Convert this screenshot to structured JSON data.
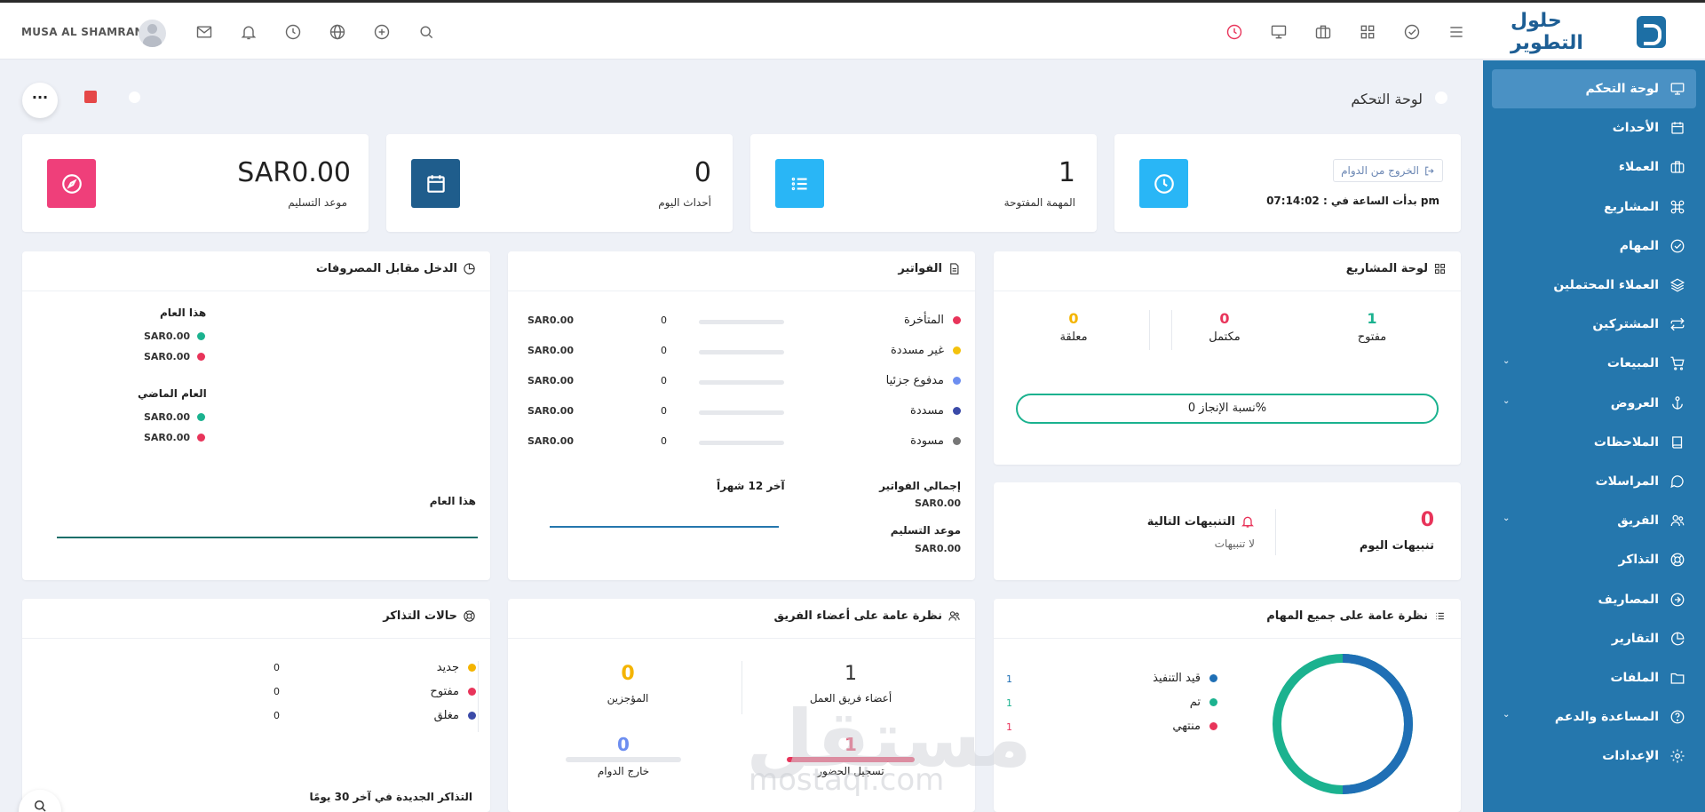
{
  "brand": {
    "name": "حلول التطوير"
  },
  "user": {
    "name": "MUSA AL SHAMRANI"
  },
  "page": {
    "title": "لوحة التحكم"
  },
  "sidebar": {
    "items": [
      {
        "label": "لوحة التحكم",
        "icon": "monitor-icon",
        "active": true
      },
      {
        "label": "الأحداث",
        "icon": "calendar-icon"
      },
      {
        "label": "العملاء",
        "icon": "briefcase-icon"
      },
      {
        "label": "المشاريع",
        "icon": "command-icon"
      },
      {
        "label": "المهام",
        "icon": "check-circle-icon"
      },
      {
        "label": "العملاء المحتملين",
        "icon": "layers-icon"
      },
      {
        "label": "المشتركين",
        "icon": "repeat-icon"
      },
      {
        "label": "المبيعات",
        "icon": "cart-icon",
        "chevron": true
      },
      {
        "label": "العروض",
        "icon": "anchor-icon",
        "chevron": true
      },
      {
        "label": "الملاحظات",
        "icon": "book-icon"
      },
      {
        "label": "المراسلات",
        "icon": "message-icon"
      },
      {
        "label": "الفريق",
        "icon": "users-icon",
        "chevron": true
      },
      {
        "label": "التذاكر",
        "icon": "lifebuoy-icon"
      },
      {
        "label": "المصاريف",
        "icon": "arrow-circle-icon"
      },
      {
        "label": "التقارير",
        "icon": "pie-icon"
      },
      {
        "label": "الملفات",
        "icon": "folder-icon"
      },
      {
        "label": "المساعدة والدعم",
        "icon": "help-icon",
        "chevron": true
      },
      {
        "label": "الإعدادات",
        "icon": "settings-icon"
      }
    ]
  },
  "stats": {
    "clock": {
      "button": "الخروج من الدوام",
      "started": "بدأت الساعة في : 07:14:02 pm"
    },
    "open_tasks": {
      "value": "1",
      "label": "المهمة المفتوحة"
    },
    "events_today": {
      "value": "0",
      "label": "أحداث اليوم"
    },
    "due": {
      "value": "SAR0.00",
      "label": "موعد التسليم"
    }
  },
  "projects": {
    "title": "لوحة المشاريع",
    "open": {
      "value": "1",
      "label": "مفتوح"
    },
    "completed": {
      "value": "0",
      "label": "مكتمل"
    },
    "hold": {
      "value": "0",
      "label": "معلقة"
    },
    "progress": "نسبة الإنجاز 0%"
  },
  "reminders": {
    "today_value": "0",
    "today_label": "تنبيهات اليوم",
    "next_title": "التنبيهات التالية",
    "none": "لا تنبيهات"
  },
  "invoices": {
    "title": "الفواتير",
    "rows": [
      {
        "label": "المتأخرة",
        "color": "#e8345a",
        "count": "0",
        "amount": "SAR0.00"
      },
      {
        "label": "غير مسددة",
        "color": "#f4c20d",
        "count": "0",
        "amount": "SAR0.00"
      },
      {
        "label": "مدفوع جزئيا",
        "color": "#6d8ef0",
        "count": "0",
        "amount": "SAR0.00"
      },
      {
        "label": "مسددة",
        "color": "#3b4aa8",
        "count": "0",
        "amount": "SAR0.00"
      },
      {
        "label": "مسودة",
        "color": "#777",
        "count": "0",
        "amount": "SAR0.00"
      }
    ],
    "total_label": "إجمالي الفواتير",
    "total_value": "SAR0.00",
    "due_label": "موعد التسليم",
    "due_value": "SAR0.00",
    "last12": "آخر 12 شهراً"
  },
  "income": {
    "title": "الدخل مقابل المصروفات",
    "this_year": "هذا العام",
    "last_year": "العام الماضي",
    "v1": "SAR0.00",
    "v2": "SAR0.00",
    "v3": "SAR0.00",
    "v4": "SAR0.00",
    "chart_label": "هذا العام"
  },
  "tasks_overview": {
    "title": "نظرة عامة على جميع المهام",
    "items": [
      {
        "label": "قيد التنفيذ",
        "color": "#1f6fb5",
        "value": "1"
      },
      {
        "label": "تم",
        "color": "#1bb28f",
        "value": "1"
      },
      {
        "label": "منتهي",
        "color": "#e8345a",
        "value": "1"
      }
    ]
  },
  "team": {
    "title": "نظرة عامة على أعضاء الفريق",
    "members": {
      "value": "1",
      "label": "أعضاء فريق العمل"
    },
    "on_leave": {
      "value": "0",
      "label": "المؤجزين"
    },
    "clocked_in": {
      "value": "1",
      "label": "تسجيل الحضور"
    },
    "clocked_out": {
      "value": "0",
      "label": "خارج الدوام"
    }
  },
  "tickets": {
    "title": "حالات التذاكر",
    "rows": [
      {
        "label": "جديد",
        "color": "#f4b400",
        "value": "0"
      },
      {
        "label": "مفتوح",
        "color": "#e8345a",
        "value": "0"
      },
      {
        "label": "مغلق",
        "color": "#3b4aa8",
        "value": "0"
      }
    ],
    "new30": "التذاكر الجديدة في آخر 30 يومًا"
  },
  "watermark": {
    "text": "مستقل",
    "sub": "mostaql.com"
  }
}
